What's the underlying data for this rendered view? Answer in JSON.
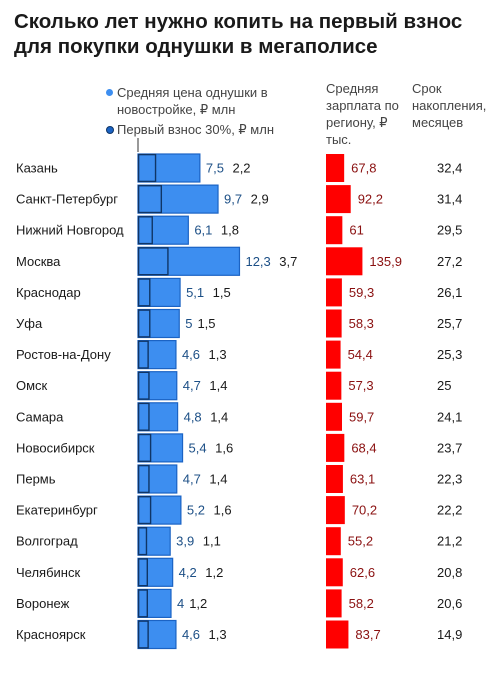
{
  "header": {
    "title": "Сколько лет нужно копить на первый взнос для покупки однушки в мегаполисе"
  },
  "legend": {
    "price": "Средняя цена однушки в новостройке, ₽ млн",
    "down_payment": "Первый взнос 30%, ₽ млн"
  },
  "columns": {
    "salary": "Средняя зарплата по региону, ₽ тыс.",
    "months": "Срок накопления, месяцев"
  },
  "colors": {
    "price_bar": "#3d8ef0",
    "price_border": "#1b63c4",
    "down_border": "#0f3566",
    "salary_bar": "#ff0000",
    "salary_text": "#8a1010",
    "price_text": "#1c4f86"
  },
  "chart_data": {
    "type": "bar",
    "categories": [
      "Казань",
      "Санкт-Петербург",
      "Нижний Новгород",
      "Москва",
      "Краснодар",
      "Уфа",
      "Ростов-на-Дону",
      "Омск",
      "Самара",
      "Новосибирск",
      "Пермь",
      "Екатеринбург",
      "Волгоград",
      "Челябинск",
      "Воронеж",
      "Красноярск"
    ],
    "series": [
      {
        "name": "Средняя цена однушки в новостройке, ₽ млн",
        "values": [
          7.5,
          9.7,
          6.1,
          12.3,
          5.1,
          5,
          4.6,
          4.7,
          4.8,
          5.4,
          4.7,
          5.2,
          3.9,
          4.2,
          4,
          4.6
        ]
      },
      {
        "name": "Первый взнос 30%, ₽ млн",
        "values": [
          2.2,
          2.9,
          1.8,
          3.7,
          1.5,
          1.5,
          1.3,
          1.4,
          1.4,
          1.6,
          1.4,
          1.6,
          1.1,
          1.2,
          1.2,
          1.3
        ]
      },
      {
        "name": "Средняя зарплата по региону, ₽ тыс.",
        "values": [
          67.8,
          92.2,
          61,
          135.9,
          59.3,
          58.3,
          54.4,
          57.3,
          59.7,
          68.4,
          63.1,
          70.2,
          55.2,
          62.6,
          58.2,
          83.7
        ]
      },
      {
        "name": "Срок накопления, месяцев",
        "values": [
          32.4,
          31.4,
          29.5,
          27.2,
          26.1,
          25.7,
          25.3,
          25,
          24.1,
          23.7,
          22.3,
          22.2,
          21.2,
          20.8,
          20.6,
          14.9
        ]
      }
    ],
    "price_labels": [
      "7,5",
      "9,7",
      "6,1",
      "12,3",
      "5,1",
      "5",
      "4,6",
      "4,7",
      "4,8",
      "5,4",
      "4,7",
      "5,2",
      "3,9",
      "4,2",
      "4",
      "4,6"
    ],
    "down_labels": [
      "2,2",
      "2,9",
      "1,8",
      "3,7",
      "1,5",
      "1,5",
      "1,3",
      "1,4",
      "1,4",
      "1,6",
      "1,4",
      "1,6",
      "1,1",
      "1,2",
      "1,2",
      "1,3"
    ],
    "salary_labels": [
      "67,8",
      "92,2",
      "61",
      "135,9",
      "59,3",
      "58,3",
      "54,4",
      "57,3",
      "59,7",
      "68,4",
      "63,1",
      "70,2",
      "55,2",
      "62,6",
      "58,2",
      "83,7"
    ],
    "months_labels": [
      "32,4",
      "31,4",
      "29,5",
      "27,2",
      "26,1",
      "25,7",
      "25,3",
      "25",
      "24,1",
      "23,7",
      "22,3",
      "22,2",
      "21,2",
      "20,8",
      "20,6",
      "14,9"
    ],
    "grid": false
  }
}
